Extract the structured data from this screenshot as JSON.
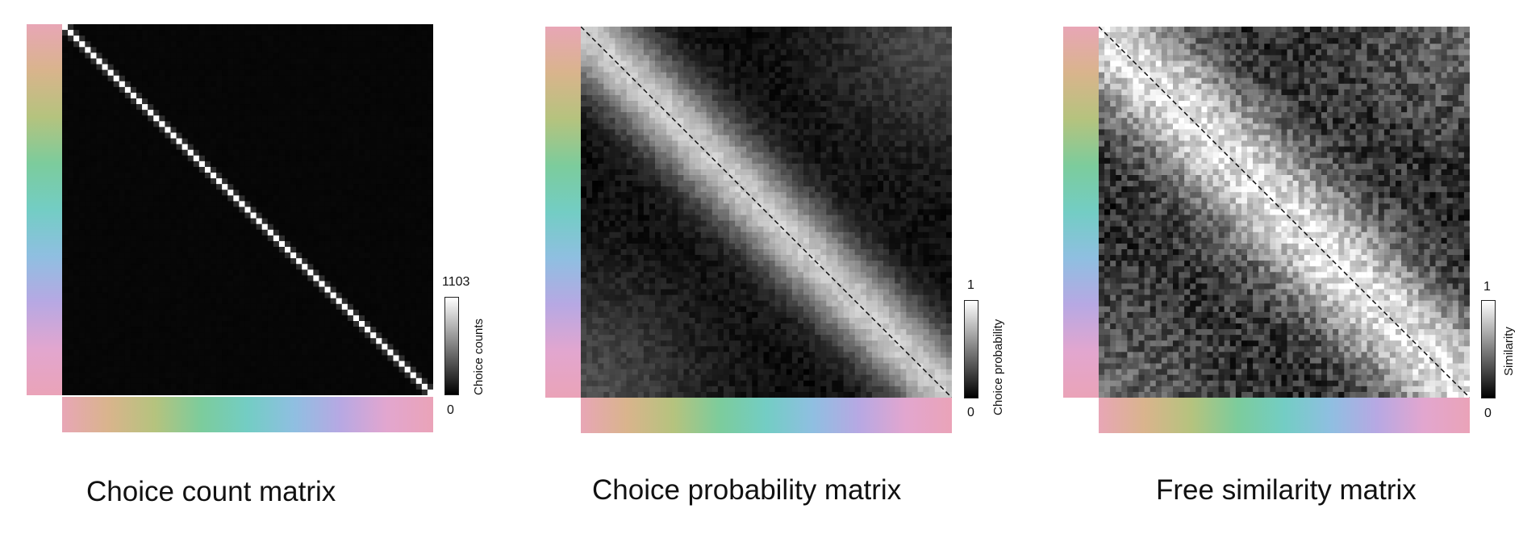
{
  "chart_data": [
    {
      "type": "heatmap",
      "title": "Choice count matrix",
      "colorbar": {
        "label": "Choice counts",
        "min": 0,
        "max": 1103,
        "min_label": "0",
        "max_label": "1103"
      },
      "size": 65,
      "diagonal_dashed_line": false,
      "diagonal_value": 1103,
      "band_width": 2,
      "off_diagonal_level": 0.02,
      "noise": 0.01,
      "axis_colormap": [
        "#e8a6b6",
        "#d9b48c",
        "#b5c37e",
        "#7ccc9c",
        "#73cdc4",
        "#8fbfe1",
        "#b7a8e3",
        "#e2a6cf",
        "#eaa3b8"
      ]
    },
    {
      "type": "heatmap",
      "title": "Choice probability matrix",
      "colorbar": {
        "label": "Choice probability",
        "min": 0,
        "max": 1,
        "min_label": "0",
        "max_label": "1"
      },
      "size": 65,
      "diagonal_dashed_line": true,
      "band_width": 7,
      "off_diagonal_level": 0.05,
      "noise": 0.12,
      "axis_colormap": [
        "#e8a6b6",
        "#d9b48c",
        "#b5c37e",
        "#7ccc9c",
        "#73cdc4",
        "#8fbfe1",
        "#b7a8e3",
        "#e2a6cf",
        "#eaa3b8"
      ]
    },
    {
      "type": "heatmap",
      "title": "Free similarity matrix",
      "colorbar": {
        "label": "Similarity",
        "min": 0,
        "max": 1,
        "min_label": "0",
        "max_label": "1"
      },
      "size": 65,
      "diagonal_dashed_line": true,
      "band_width": 10,
      "off_diagonal_level": 0.15,
      "noise": 0.35,
      "axis_colormap": [
        "#e8a6b6",
        "#d9b48c",
        "#b5c37e",
        "#7ccc9c",
        "#73cdc4",
        "#8fbfe1",
        "#b7a8e3",
        "#e2a6cf",
        "#eaa3b8"
      ]
    }
  ]
}
